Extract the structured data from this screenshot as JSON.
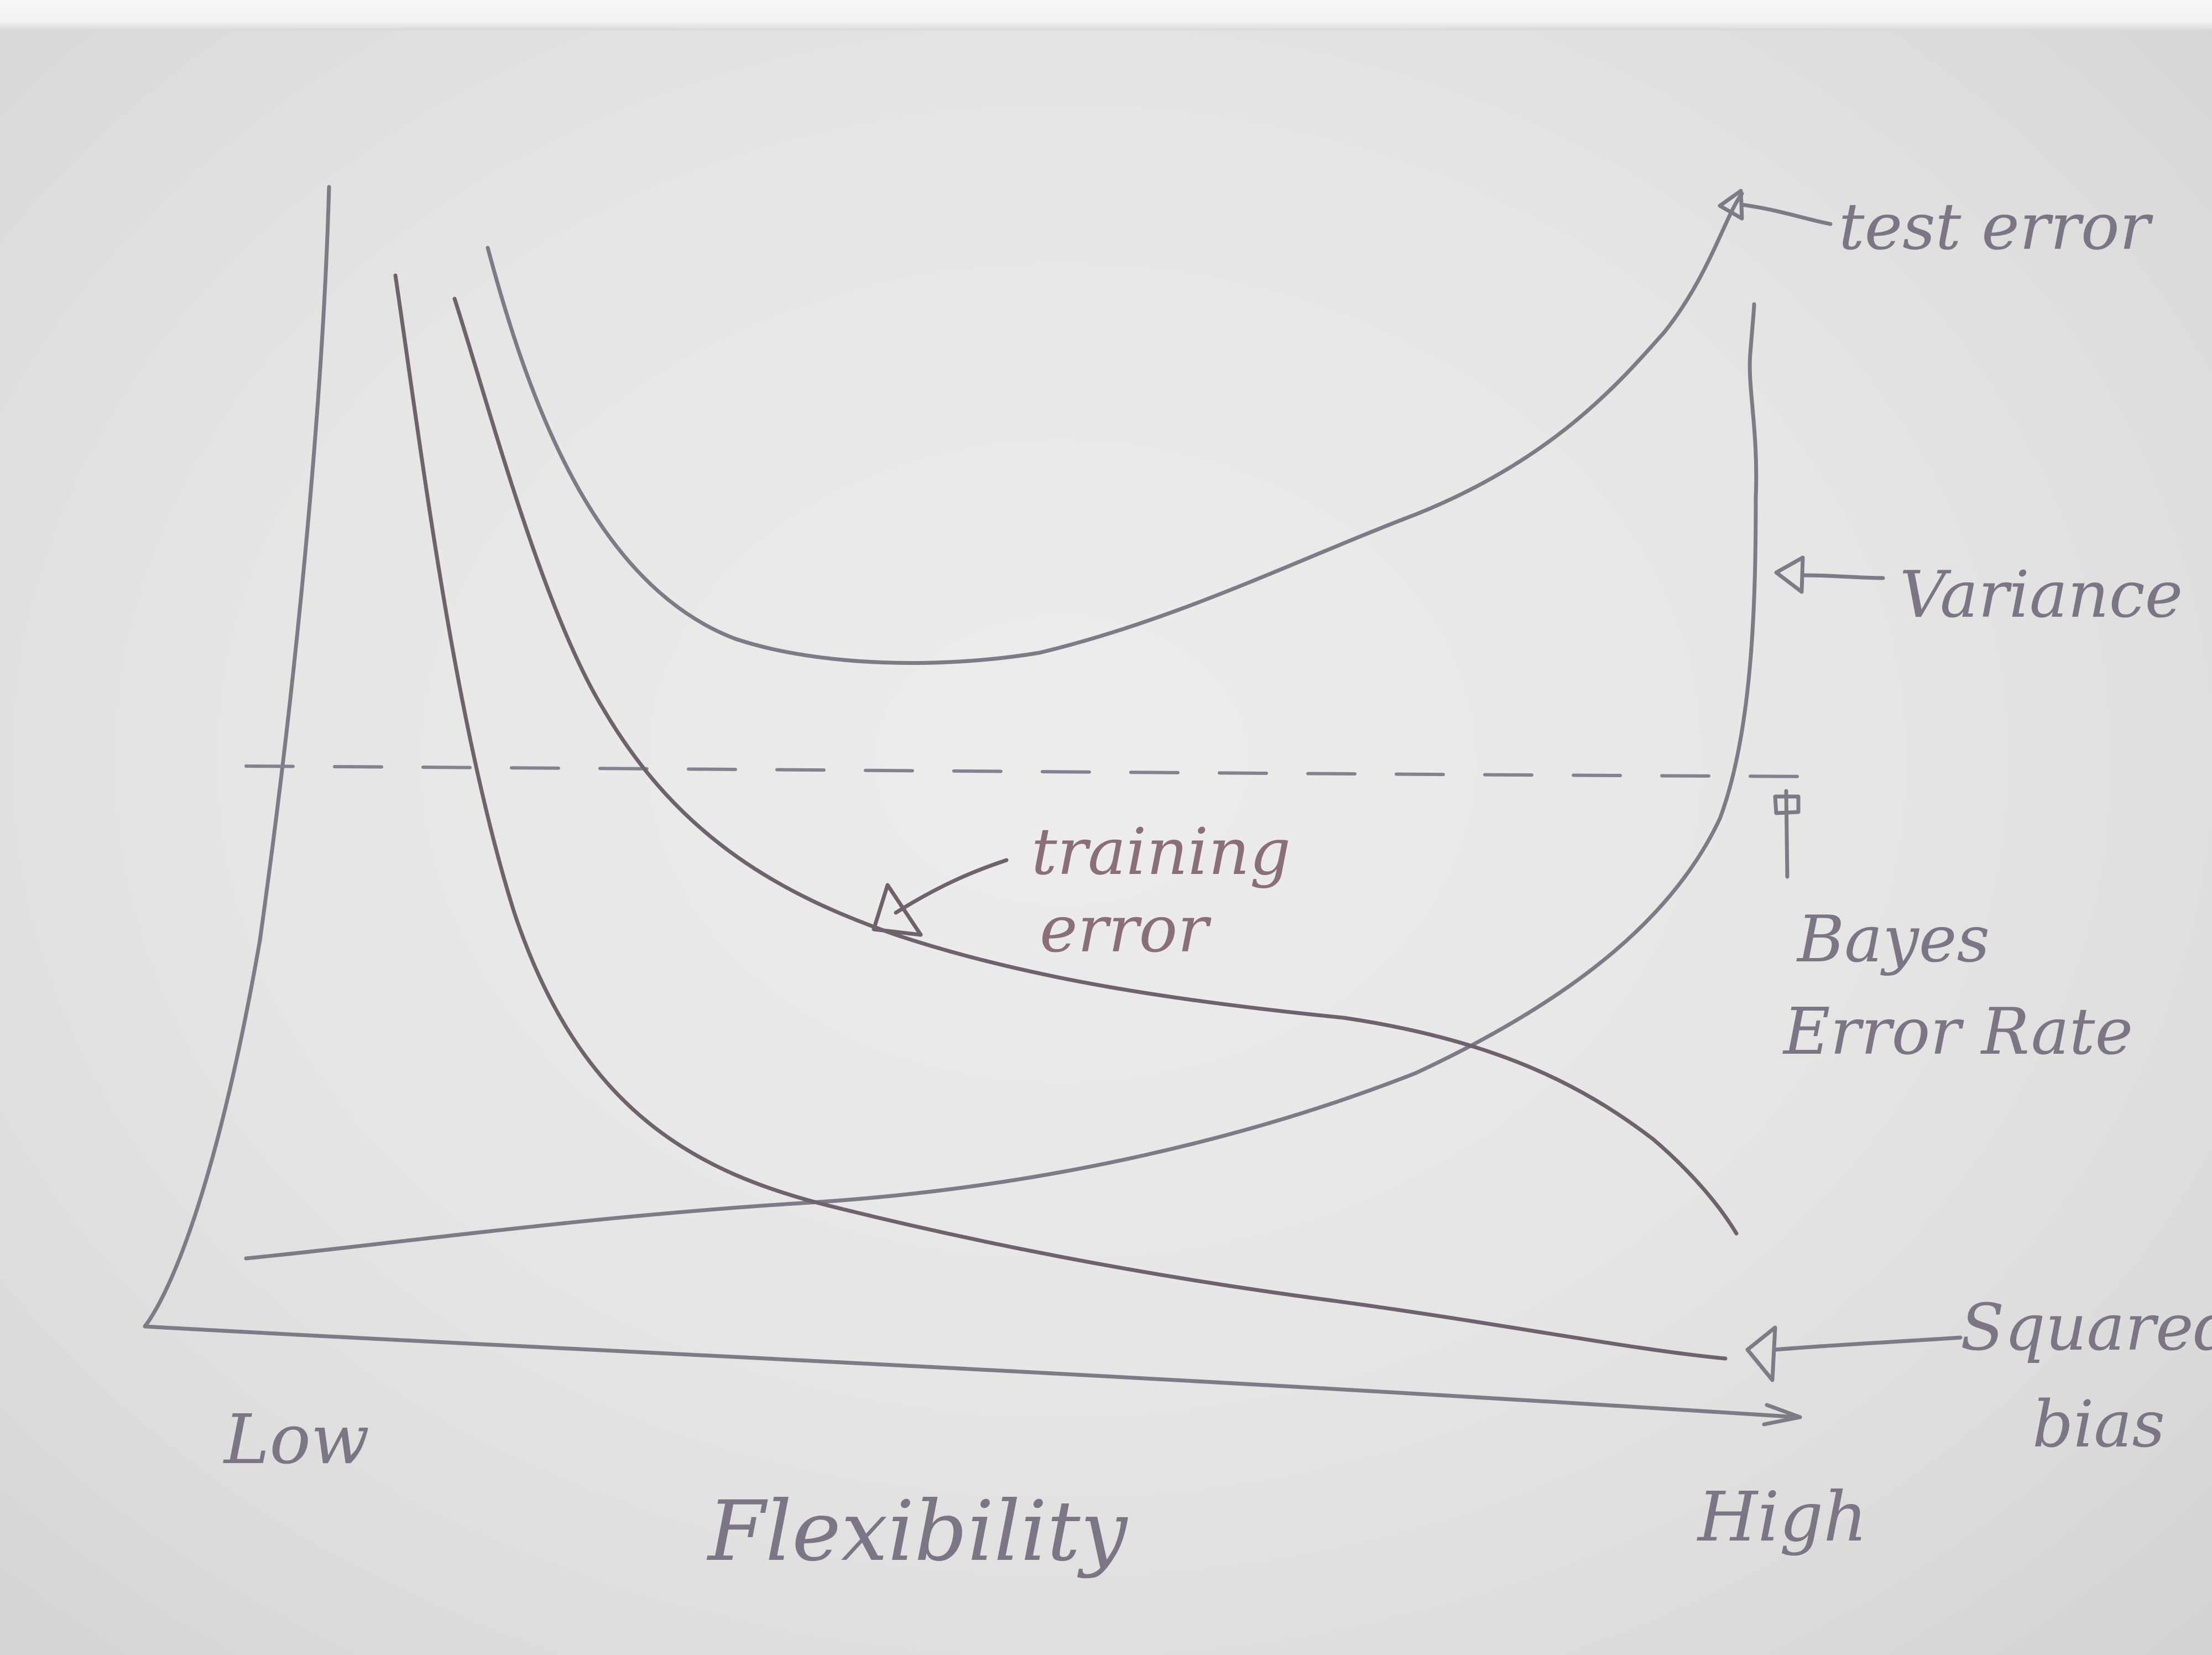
{
  "labels": {
    "axis_low": "Low",
    "axis_high": "High",
    "axis_title": "Flexibility",
    "test_error": "test error",
    "variance": "Variance",
    "training_error_line1": "training",
    "training_error_line2": "error",
    "bayes_line1": "Bayes",
    "bayes_line2": "Error Rate",
    "squared_bias_line1": "Squared",
    "squared_bias_line2": "bias"
  },
  "colors": {
    "paper": "#e8e8e6",
    "pencil": "#7e7a86",
    "pencil_reddish": "#6e636d"
  },
  "curves": [
    {
      "name": "test error",
      "shape": "U-shaped, rising steeply at high flexibility"
    },
    {
      "name": "Variance",
      "shape": "low and flat, rising sharply at high flexibility"
    },
    {
      "name": "training error",
      "shape": "monotonically decreasing"
    },
    {
      "name": "Squared bias",
      "shape": "monotonically decreasing towards zero"
    },
    {
      "name": "Bayes Error Rate",
      "shape": "horizontal dashed line"
    }
  ]
}
